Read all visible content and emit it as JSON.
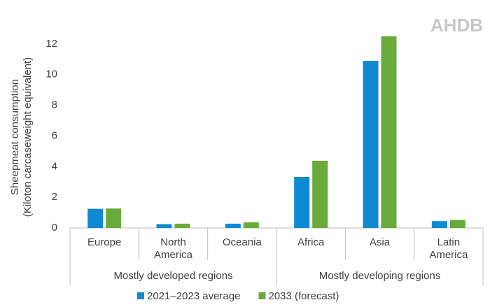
{
  "chart_data": {
    "type": "bar",
    "logo": "AHDB",
    "y_label": [
      "Sheepmeat consumption",
      "(Kiloton carcaseweight equivalent)"
    ],
    "categories": [
      "Europe",
      "North America",
      "Oceania",
      "Africa",
      "Asia",
      "Latin America"
    ],
    "category_groups": [
      "Mostly developed regions",
      "Mostly developing regions"
    ],
    "series": [
      {
        "name": "2021–2023 average",
        "color": "#0f8ad0",
        "values": [
          1.25,
          0.25,
          0.28,
          3.33,
          10.9,
          0.45
        ]
      },
      {
        "name": "2033 (forecast)",
        "color": "#6aaa3a",
        "values": [
          1.27,
          0.28,
          0.37,
          4.38,
          12.5,
          0.53
        ]
      }
    ],
    "ylim": [
      0,
      13
    ],
    "yticks": [
      0,
      2,
      4,
      6,
      8,
      10,
      12
    ],
    "grid": false,
    "legend": "bottom"
  }
}
